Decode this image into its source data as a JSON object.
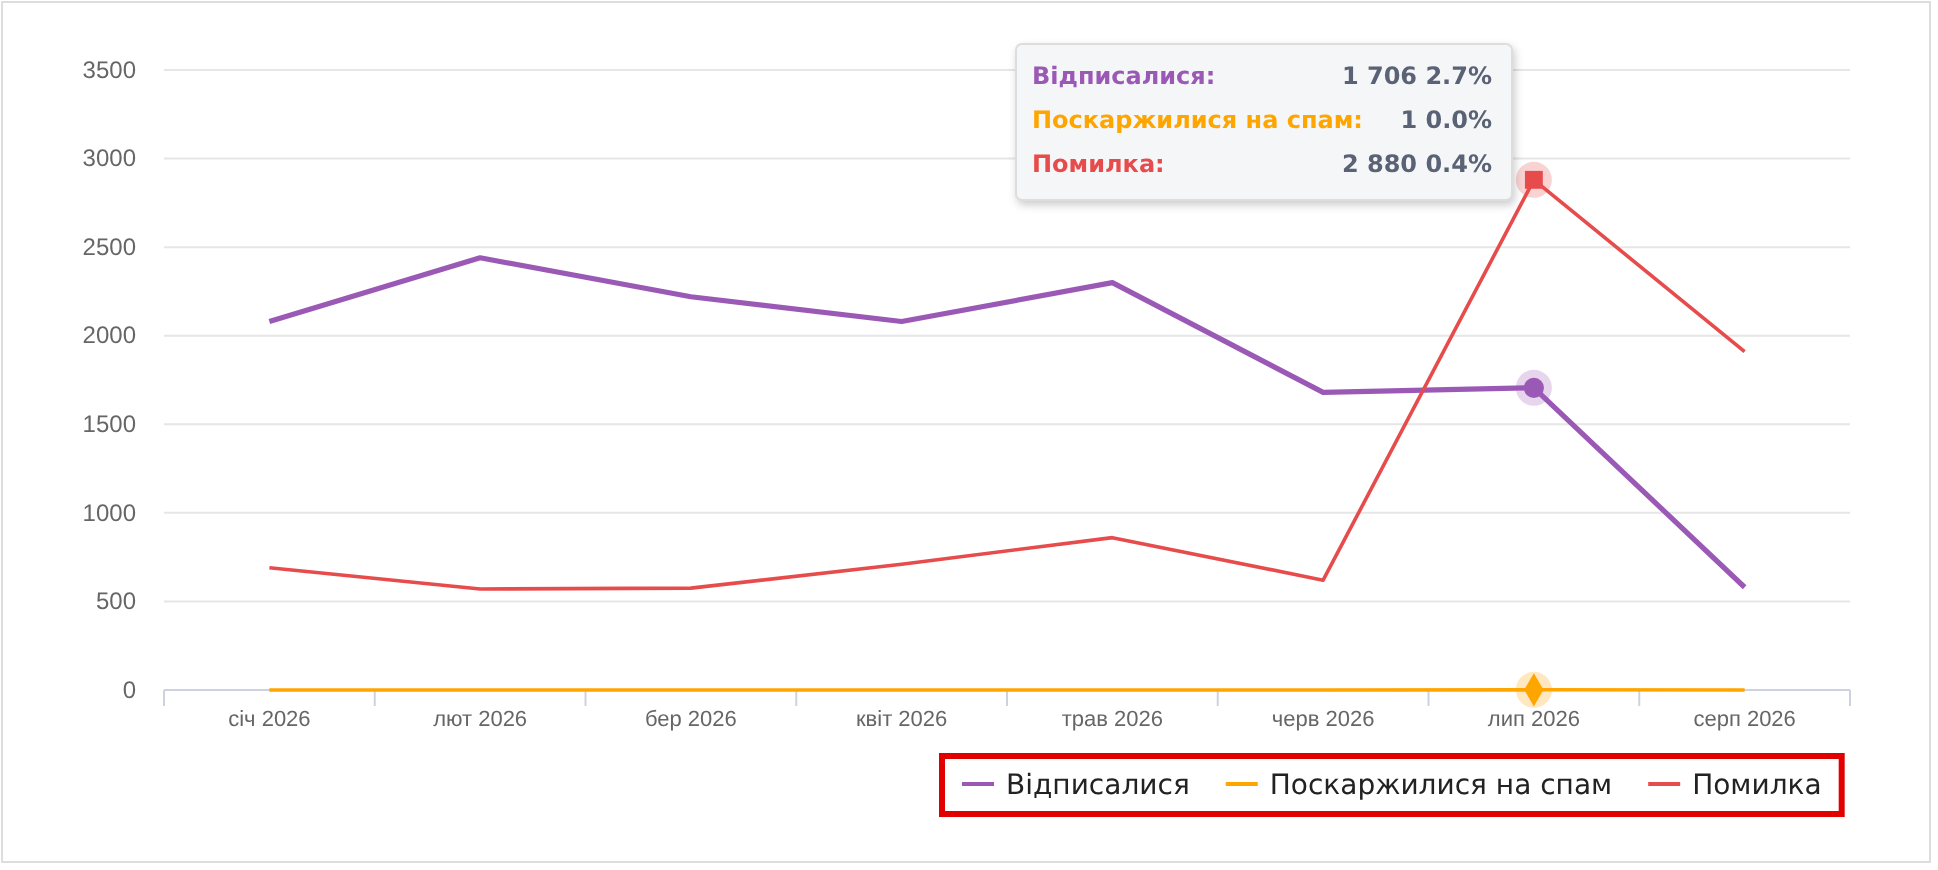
{
  "chart_data": {
    "type": "line",
    "categories": [
      "січ 2026",
      "лют 2026",
      "бер 2026",
      "квіт 2026",
      "трав 2026",
      "черв 2026",
      "лип 2026",
      "серп 2026"
    ],
    "series": [
      {
        "name": "Відписалися",
        "color": "#9b59b6",
        "values": [
          2080,
          2440,
          2220,
          2080,
          2300,
          1680,
          1706,
          580
        ]
      },
      {
        "name": "Поскаржилися на спам",
        "color": "#ffa500",
        "values": [
          0,
          0,
          0,
          0,
          0,
          0,
          1,
          0
        ]
      },
      {
        "name": "Помилка",
        "color": "#e74c4c",
        "values": [
          690,
          570,
          575,
          710,
          860,
          620,
          2880,
          1910
        ]
      }
    ],
    "ylim": [
      0,
      3500
    ],
    "yticks": [
      0,
      500,
      1000,
      1500,
      2000,
      2500,
      3000,
      3500
    ],
    "grid": "y",
    "legend": "bottom right",
    "marker": "none",
    "annotations": [
      "Відписалися:",
      "1 706 2.7%",
      "Поскаржилися на спам:",
      "1 0.0%",
      "Помилка:",
      "2 880 0.4%"
    ]
  }
}
